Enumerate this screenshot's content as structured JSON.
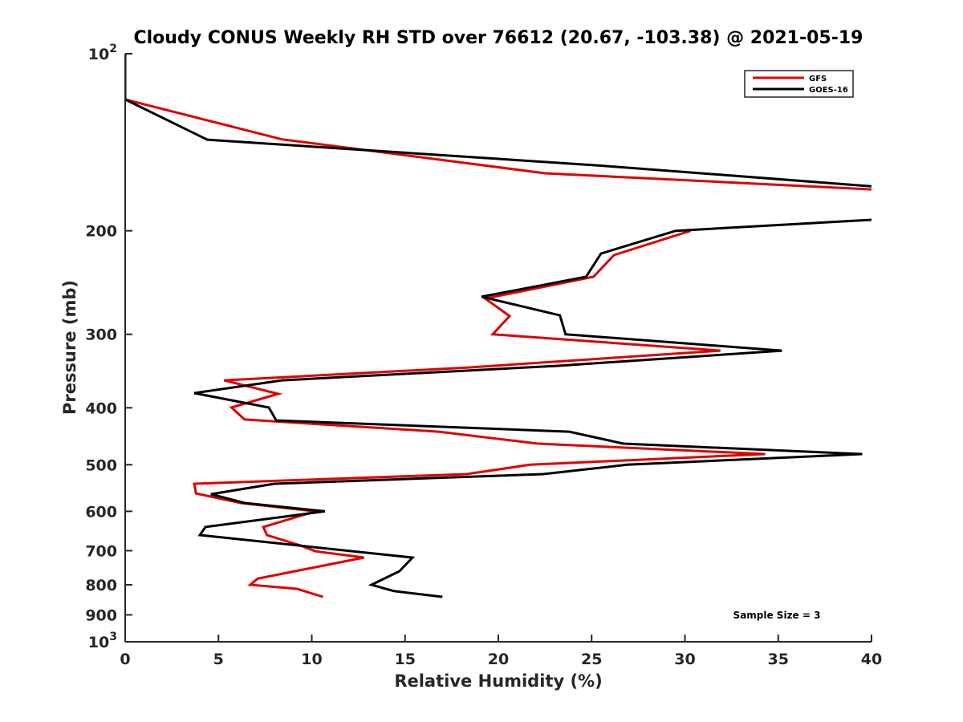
{
  "chart_data": {
    "type": "line",
    "title": "Cloudy CONUS Weekly RH STD over 76612 (20.67, -103.38) @ 2021-05-19",
    "xlabel": "Relative Humidity (%)",
    "ylabel": "Pressure (mb)",
    "xlim": [
      0,
      40
    ],
    "ylim": [
      100,
      1000
    ],
    "yscale": "log",
    "yreverse": true,
    "grid": false,
    "legend_position": "top-right",
    "x_ticks": [
      "0",
      "5",
      "10",
      "15",
      "20",
      "25",
      "30",
      "35",
      "40"
    ],
    "x_tick_values": [
      0,
      5,
      10,
      15,
      20,
      25,
      30,
      35,
      40
    ],
    "y_ticks": [
      {
        "value": 100,
        "base": "10",
        "exp": "2"
      },
      {
        "value": 200,
        "label": "200"
      },
      {
        "value": 300,
        "label": "300"
      },
      {
        "value": 400,
        "label": "400"
      },
      {
        "value": 500,
        "label": "500"
      },
      {
        "value": 600,
        "label": "600"
      },
      {
        "value": 700,
        "label": "700"
      },
      {
        "value": 800,
        "label": "800"
      },
      {
        "value": 900,
        "label": "900"
      },
      {
        "value": 1000,
        "base": "10",
        "exp": "3"
      }
    ],
    "annotation": "Sample Size = 3",
    "series": [
      {
        "name": "GFS",
        "color": "#e00000",
        "points": [
          [
            0,
            100
          ],
          [
            0,
            119.6
          ],
          [
            8.4,
            139.8
          ],
          [
            22.5,
            159.7
          ],
          [
            40,
            170.1
          ],
          [
            null,
            185
          ],
          [
            30.3,
            200
          ],
          [
            26.2,
            220
          ],
          [
            25.1,
            239.5
          ],
          [
            19.3,
            260.8
          ],
          [
            20.6,
            279.3
          ],
          [
            19.7,
            300
          ],
          [
            31.9,
            319.8
          ],
          [
            18.4,
            341.6
          ],
          [
            5.3,
            359.2
          ],
          [
            8.2,
            378.8
          ],
          [
            5.7,
            399.6
          ],
          [
            6.4,
            418.8
          ],
          [
            16.8,
            439.2
          ],
          [
            22.1,
            460.3
          ],
          [
            34.3,
            479.5
          ],
          [
            21.7,
            500
          ],
          [
            18.3,
            518.6
          ],
          [
            3.7,
            538.6
          ],
          [
            3.8,
            559.5
          ],
          [
            6.2,
            580.7
          ],
          [
            10.2,
            600
          ],
          [
            7.4,
            638
          ],
          [
            7.6,
            658.6
          ],
          [
            9.4,
            686
          ],
          [
            10.2,
            701.7
          ],
          [
            12.8,
            719
          ],
          [
            7.1,
            781
          ],
          [
            6.7,
            800
          ],
          [
            9.2,
            812.7
          ],
          [
            10.6,
            838.8
          ]
        ]
      },
      {
        "name": "GOES-16",
        "color": "#000000",
        "points": [
          [
            0,
            100
          ],
          [
            0,
            119.6
          ],
          [
            4.4,
            140
          ],
          [
            25.5,
            155
          ],
          [
            40,
            168
          ],
          [
            null,
            180
          ],
          [
            40,
            191.6
          ],
          [
            29.5,
            200
          ],
          [
            25.5,
            218.7
          ],
          [
            24.7,
            239.5
          ],
          [
            19.1,
            259
          ],
          [
            23.3,
            278.5
          ],
          [
            23.6,
            300
          ],
          [
            35.2,
            319.8
          ],
          [
            23.2,
            339.4
          ],
          [
            8.4,
            359.2
          ],
          [
            3.7,
            377.6
          ],
          [
            7.7,
            399.6
          ],
          [
            8.1,
            420.3
          ],
          [
            23.8,
            439.2
          ],
          [
            26.7,
            460.3
          ],
          [
            39.5,
            479.5
          ],
          [
            26.9,
            500
          ],
          [
            22.4,
            518.6
          ],
          [
            8.0,
            538.6
          ],
          [
            4.6,
            561
          ],
          [
            6.4,
            580.7
          ],
          [
            10.7,
            600
          ],
          [
            4.3,
            638
          ],
          [
            4.0,
            658.6
          ],
          [
            15.4,
            719
          ],
          [
            14.7,
            758.6
          ],
          [
            13.2,
            800
          ],
          [
            14.4,
            820
          ],
          [
            17.0,
            838.8
          ]
        ]
      }
    ]
  }
}
